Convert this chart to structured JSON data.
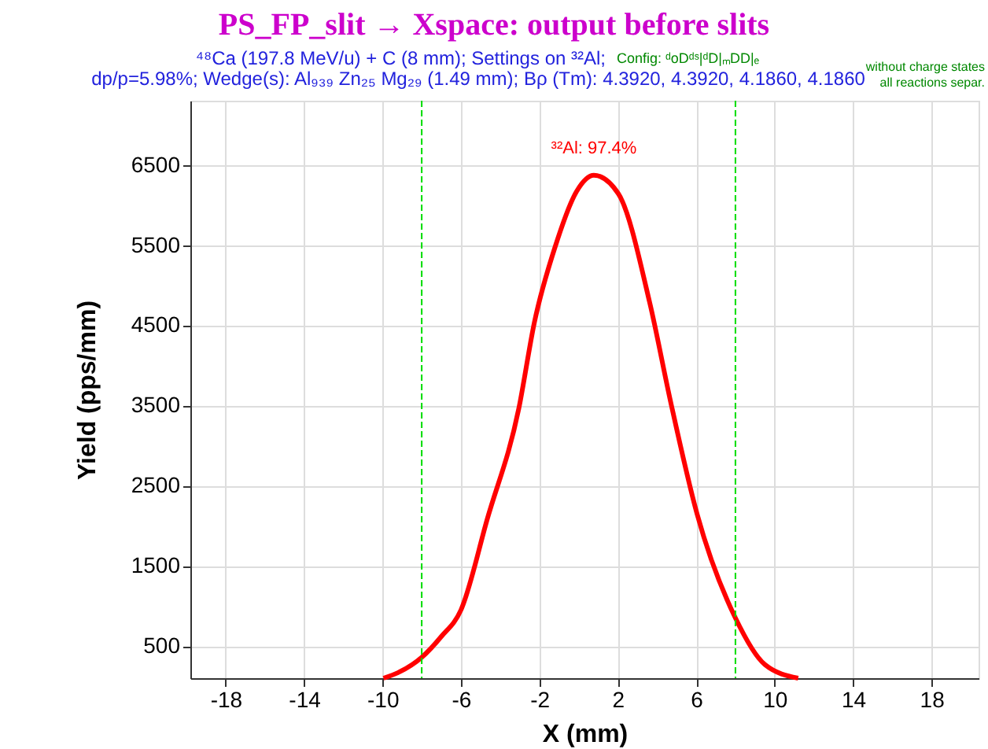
{
  "chart_data": {
    "type": "line",
    "title": "PS_FP_slit → Xspace: output before slits",
    "subtitle": "⁴⁸Ca (197.8 MeV/u) + C (8 mm);   Settings on ³²Al;",
    "xlabel": "X (mm)",
    "ylabel": "Yield (pps/mm)",
    "x": [
      -9.95,
      -9.2,
      -8,
      -7,
      -6,
      -4.65,
      -3.05,
      -2.25,
      -1.18,
      -0.1,
      0.78,
      2.03,
      3.63,
      4.7,
      6.04,
      8,
      9.5,
      11.2
    ],
    "series": [
      {
        "color": "#ff0000",
        "values": [
          100,
          170,
          360,
          620,
          950,
          2090,
          3460,
          4540,
          5490,
          6170,
          6370,
          6140,
          4780,
          3540,
          2150,
          850,
          270,
          100
        ]
      }
    ],
    "xlim": [
      -19.8,
      20.4
    ],
    "xticks": [
      -18,
      -14,
      -10,
      -6,
      -2,
      2,
      6,
      10,
      14,
      18
    ],
    "ylim": [
      100,
      7300
    ],
    "yticks": [
      500,
      1500,
      2500,
      3500,
      4500,
      5500,
      6500
    ],
    "grid": true,
    "marker": "none",
    "line_style": "solid",
    "ref_lines": [
      {
        "axis": "x",
        "value": -8,
        "label": null,
        "color": "#00dd00",
        "line_style": "dashed"
      },
      {
        "axis": "x",
        "value": 8,
        "label": null,
        "color": "#00dd00",
        "line_style": "dashed"
      }
    ],
    "annotations": [
      {
        "text": "³²Al: 97.4%",
        "x": 0.78,
        "y": 6370
      },
      "Config: ᵈoDᵈˢ|ᵈD|ₘDD|ₑ",
      "dp/p=5.98%;   Wedge(s): Al₉₃₉ Zn₂₅ Mg₂₉ (1.49 mm);   Bρ (Tm): 4.3920, 4.3920, 4.1860, 4.1860",
      "without charge states",
      "all reactions separ."
    ]
  }
}
